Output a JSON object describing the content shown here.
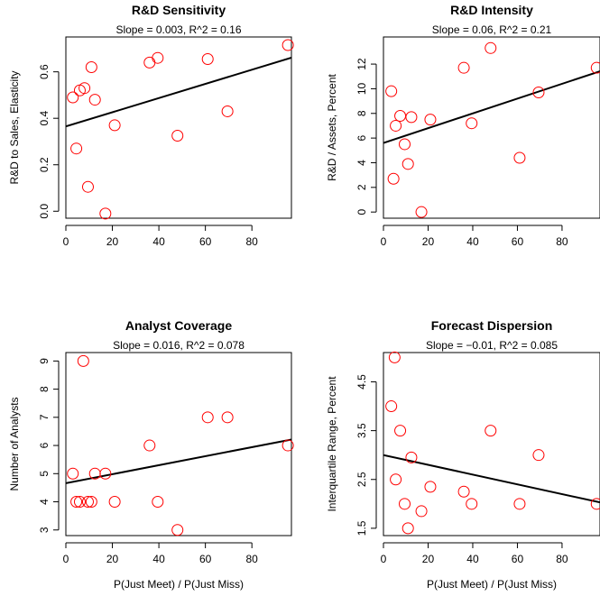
{
  "chart_data": [
    {
      "type": "scatter",
      "title": "R&D Sensitivity",
      "subtitle": "Slope = 0.003, R^2 = 0.16",
      "xlabel": "",
      "ylabel": "R&D to Sales, Elasticity",
      "xlim": [
        0,
        97
      ],
      "ylim": [
        -0.03,
        0.75
      ],
      "xticks": [
        "0",
        "20",
        "40",
        "60",
        "80"
      ],
      "yticks": [
        "0.0",
        "0.2",
        "0.4",
        "0.6"
      ],
      "x": [
        3,
        4.5,
        6,
        8,
        9.5,
        11,
        12.5,
        17,
        21,
        36,
        39.5,
        48,
        61,
        69.5,
        95.5
      ],
      "y": [
        0.49,
        0.27,
        0.52,
        0.53,
        0.105,
        0.62,
        0.48,
        -0.01,
        0.37,
        0.64,
        0.66,
        0.325,
        0.655,
        0.43,
        0.715
      ],
      "fit": {
        "intercept": 0.365,
        "slope": 0.00305
      },
      "grid": false,
      "colors": {
        "points": "#ff0000",
        "line": "#000000"
      }
    },
    {
      "type": "scatter",
      "title": "R&D Intensity",
      "subtitle": "Slope = 0.06, R^2 = 0.21",
      "xlabel": "",
      "ylabel": "R&D / Assets, Percent",
      "xlim": [
        0,
        97
      ],
      "ylim": [
        -0.5,
        14.2
      ],
      "xticks": [
        "0",
        "20",
        "40",
        "60",
        "80"
      ],
      "yticks": [
        "0",
        "2",
        "4",
        "6",
        "8",
        "10",
        "12"
      ],
      "x": [
        3.5,
        4.5,
        5.5,
        7.5,
        9.5,
        11,
        12.5,
        17,
        21,
        36,
        39.5,
        48,
        61,
        69.5,
        95.5
      ],
      "y": [
        9.8,
        2.7,
        7.0,
        7.8,
        5.5,
        3.9,
        7.7,
        0.0,
        7.5,
        11.7,
        7.2,
        13.3,
        4.4,
        9.7,
        11.7
      ],
      "fit": {
        "intercept": 5.6,
        "slope": 0.06
      },
      "grid": false,
      "colors": {
        "points": "#ff0000",
        "line": "#000000"
      }
    },
    {
      "type": "scatter",
      "title": "Analyst Coverage",
      "subtitle": "Slope = 0.016, R^2 = 0.078",
      "xlabel": "P(Just Meet) / P(Just Miss)",
      "ylabel": "Number of Analysts",
      "xlim": [
        0,
        97
      ],
      "ylim": [
        2.8,
        9.3
      ],
      "xticks": [
        "0",
        "20",
        "40",
        "60",
        "80"
      ],
      "yticks": [
        "3",
        "4",
        "5",
        "6",
        "7",
        "8",
        "9"
      ],
      "x": [
        3,
        4.5,
        6,
        7.5,
        9.5,
        11,
        12.5,
        17,
        21,
        36,
        39.5,
        48,
        61,
        69.5,
        95.5
      ],
      "y": [
        5,
        4,
        4,
        9,
        4,
        4,
        5,
        5,
        4,
        6,
        4,
        3,
        7,
        7,
        6
      ],
      "fit": {
        "intercept": 4.66,
        "slope": 0.016
      },
      "grid": false,
      "colors": {
        "points": "#ff0000",
        "line": "#000000"
      }
    },
    {
      "type": "scatter",
      "title": "Forecast Dispersion",
      "subtitle": "Slope = −0.01, R^2 = 0.085",
      "xlabel": "P(Just Meet) / P(Just Miss)",
      "ylabel": "Interquartile Range, Percent",
      "xlim": [
        0,
        97
      ],
      "ylim": [
        1.35,
        5.1
      ],
      "xticks": [
        "0",
        "20",
        "40",
        "60",
        "80"
      ],
      "yticks": [
        "1.5",
        "2.5",
        "3.5",
        "4.5"
      ],
      "x": [
        3.5,
        5,
        5.5,
        7.5,
        9.5,
        11,
        12.5,
        17,
        21,
        36,
        39.5,
        48,
        61,
        69.5,
        95.5
      ],
      "y": [
        4.0,
        5.0,
        2.5,
        3.5,
        2.0,
        1.5,
        2.95,
        1.85,
        2.35,
        2.25,
        2.0,
        3.5,
        2.0,
        3.0,
        2.0
      ],
      "fit": {
        "intercept": 3.0,
        "slope": -0.01
      },
      "grid": false,
      "colors": {
        "points": "#ff0000",
        "line": "#000000"
      }
    }
  ]
}
